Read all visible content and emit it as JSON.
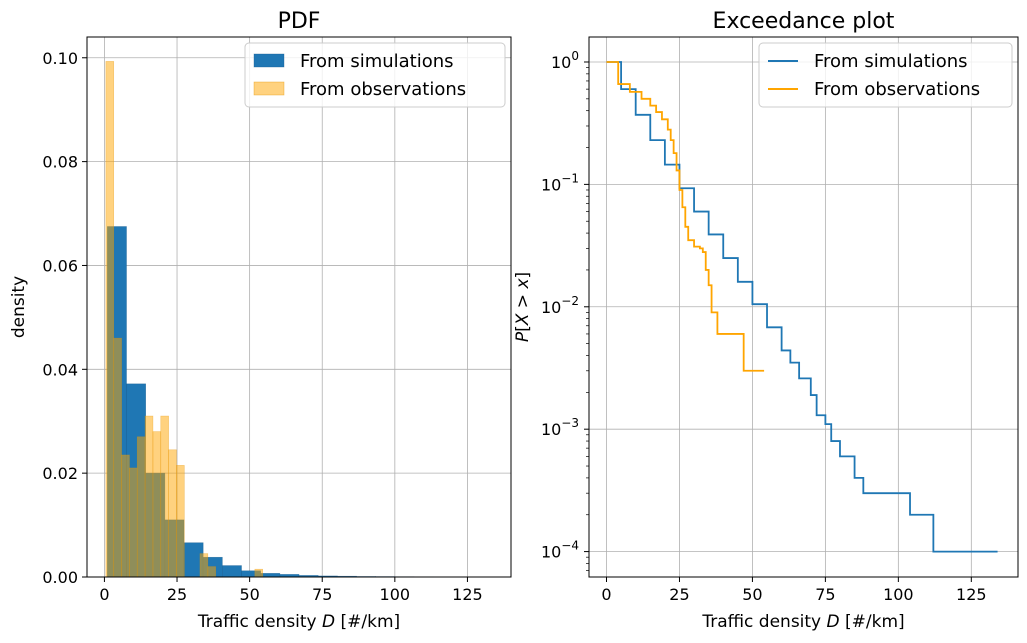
{
  "chart_data": [
    {
      "type": "bar",
      "title": "PDF",
      "xlabel": "Traffic density D [#/km]",
      "ylabel": "density",
      "xlim": [
        -6,
        140
      ],
      "ylim": [
        0,
        0.104
      ],
      "xticks": [
        0,
        25,
        50,
        75,
        100,
        125
      ],
      "yticks": [
        0.0,
        0.02,
        0.04,
        0.06,
        0.08,
        0.1
      ],
      "ytick_labels": [
        "0.00",
        "0.02",
        "0.04",
        "0.06",
        "0.08",
        "0.10"
      ],
      "grid": true,
      "legend_position": "top-right",
      "series": [
        {
          "name": "From simulations",
          "color": "#1f77b4",
          "opacity": 1.0,
          "bin_width": 6.6,
          "x": [
            1.0,
            7.6,
            14.2,
            20.8,
            27.4,
            34.0,
            40.6,
            47.2,
            53.8,
            60.4,
            67.0,
            73.6,
            80.2,
            86.8,
            93.4,
            100.0,
            106.6,
            113.2,
            119.8,
            126.4
          ],
          "values": [
            0.0675,
            0.0372,
            0.02,
            0.011,
            0.0066,
            0.0038,
            0.0022,
            0.0012,
            0.0007,
            0.0005,
            0.0003,
            0.0002,
            0.00015,
            0.0001,
            8e-05,
            5e-05,
            4e-05,
            3e-05,
            2e-05,
            1e-05
          ]
        },
        {
          "name": "From observations",
          "color": "#ffa500",
          "opacity": 0.5,
          "bin_width": 2.7,
          "x": [
            0.5,
            3.2,
            5.9,
            8.6,
            11.3,
            14.0,
            16.7,
            19.4,
            22.1,
            24.8,
            27.5,
            30.2,
            32.9,
            35.6,
            38.3,
            41.0,
            43.7,
            46.4,
            49.1,
            51.8
          ],
          "values": [
            0.0993,
            0.046,
            0.0235,
            0.021,
            0.027,
            0.031,
            0.028,
            0.031,
            0.0245,
            0.0215,
            0.0,
            0.0,
            0.0045,
            0.002,
            0.0,
            0.0,
            0.0,
            0.0,
            0.0,
            0.0015
          ]
        }
      ]
    },
    {
      "type": "line",
      "title": "Exceedance plot",
      "xlabel": "Traffic density D [#/km]",
      "ylabel": "P[X > x]",
      "yscale": "log",
      "xlim": [
        -6,
        141
      ],
      "ylim": [
        6.2e-05,
        1.6
      ],
      "xticks": [
        0,
        25,
        50,
        75,
        100,
        125
      ],
      "yticks": [
        0.0001,
        0.001,
        0.01,
        0.1,
        1
      ],
      "ytick_exponents": [
        "−4",
        "−3",
        "−2",
        "−1",
        "0"
      ],
      "grid": true,
      "legend_position": "top-right",
      "series": [
        {
          "name": "From simulations",
          "color": "#1f77b4",
          "step": true,
          "x": [
            0,
            5,
            10,
            15,
            20,
            25,
            30,
            35,
            40,
            45,
            50,
            55,
            60,
            63,
            66,
            70,
            72,
            75,
            77,
            80,
            85,
            88,
            90,
            96,
            104,
            112,
            134
          ],
          "values": [
            1.0,
            0.6,
            0.37,
            0.23,
            0.145,
            0.093,
            0.06,
            0.039,
            0.025,
            0.016,
            0.0105,
            0.0068,
            0.0044,
            0.0035,
            0.0026,
            0.0019,
            0.0013,
            0.0011,
            0.0008,
            0.0006,
            0.0004,
            0.0003,
            0.0003,
            0.0003,
            0.0002,
            0.0001,
            0.0001
          ]
        },
        {
          "name": "From observations",
          "color": "#ffa500",
          "step": true,
          "x": [
            0,
            4,
            8,
            12,
            15,
            17,
            19,
            21,
            22,
            23,
            24,
            25,
            26,
            27,
            28,
            30,
            32,
            33,
            34,
            35,
            36,
            37,
            38,
            42,
            46,
            47,
            54
          ],
          "values": [
            1.0,
            0.66,
            0.57,
            0.5,
            0.44,
            0.39,
            0.34,
            0.28,
            0.23,
            0.18,
            0.13,
            0.09,
            0.065,
            0.045,
            0.035,
            0.031,
            0.03,
            0.028,
            0.02,
            0.015,
            0.009,
            0.009,
            0.006,
            0.006,
            0.006,
            0.003,
            0.003
          ]
        }
      ]
    }
  ]
}
